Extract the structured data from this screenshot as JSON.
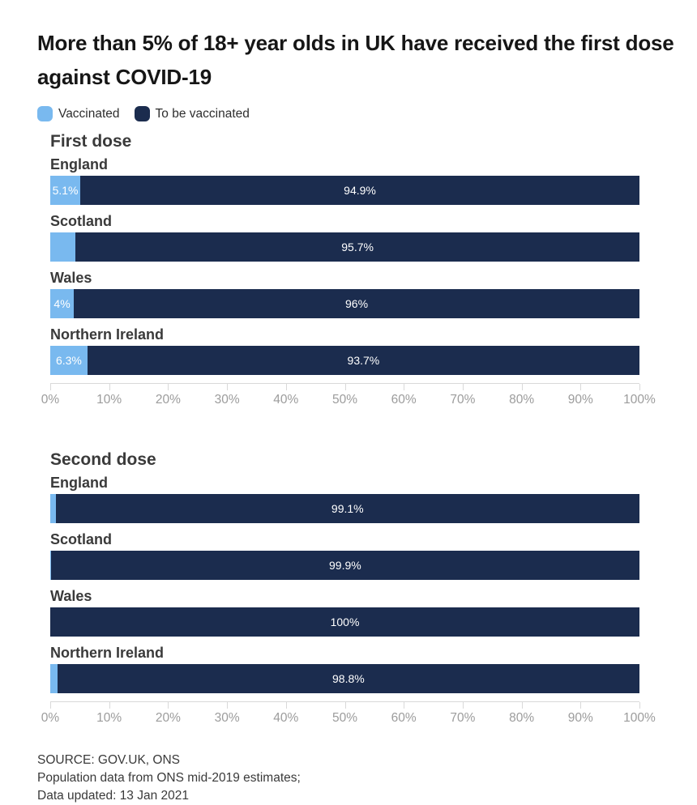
{
  "title": "More than 5% of 18+ year olds in UK have received the first dose against COVID-19",
  "colors": {
    "vaccinated": "#79b9ef",
    "to_be_vaccinated": "#1b2c4e",
    "axis": "#d9d9d9",
    "axis_label": "#9c9c9c"
  },
  "legend": {
    "items": [
      {
        "label": "Vaccinated",
        "color": "#79b9ef"
      },
      {
        "label": "To be vaccinated",
        "color": "#1b2c4e"
      }
    ]
  },
  "sections": [
    {
      "heading": "First dose",
      "rows": [
        {
          "country": "England",
          "vaccinated_pct": 5.1,
          "vaccinated_label": "5.1%",
          "remaining_pct": 94.9,
          "remaining_label": "94.9%"
        },
        {
          "country": "Scotland",
          "vaccinated_pct": 4.3,
          "vaccinated_label": "",
          "remaining_pct": 95.7,
          "remaining_label": "95.7%"
        },
        {
          "country": "Wales",
          "vaccinated_pct": 4,
          "vaccinated_label": "4%",
          "remaining_pct": 96,
          "remaining_label": "96%"
        },
        {
          "country": "Northern Ireland",
          "vaccinated_pct": 6.3,
          "vaccinated_label": "6.3%",
          "remaining_pct": 93.7,
          "remaining_label": "93.7%"
        }
      ],
      "ticks": [
        "0%",
        "10%",
        "20%",
        "30%",
        "40%",
        "50%",
        "60%",
        "70%",
        "80%",
        "90%",
        "100%"
      ]
    },
    {
      "heading": "Second dose",
      "rows": [
        {
          "country": "England",
          "vaccinated_pct": 0.9,
          "vaccinated_label": "",
          "remaining_pct": 99.1,
          "remaining_label": "99.1%"
        },
        {
          "country": "Scotland",
          "vaccinated_pct": 0.1,
          "vaccinated_label": "",
          "remaining_pct": 99.9,
          "remaining_label": "99.9%"
        },
        {
          "country": "Wales",
          "vaccinated_pct": 0,
          "vaccinated_label": "",
          "remaining_pct": 100,
          "remaining_label": "100%"
        },
        {
          "country": "Northern Ireland",
          "vaccinated_pct": 1.2,
          "vaccinated_label": "",
          "remaining_pct": 98.8,
          "remaining_label": "98.8%"
        }
      ],
      "ticks": [
        "0%",
        "10%",
        "20%",
        "30%",
        "40%",
        "50%",
        "60%",
        "70%",
        "80%",
        "90%",
        "100%"
      ]
    }
  ],
  "source": {
    "lines": [
      "SOURCE: GOV.UK, ONS",
      "Population data from ONS mid-2019 estimates;",
      "Data updated: 13 Jan 2021"
    ]
  },
  "chart_data": [
    {
      "type": "bar",
      "orientation": "horizontal_stacked",
      "title": "First dose",
      "categories": [
        "England",
        "Scotland",
        "Wales",
        "Northern Ireland"
      ],
      "series": [
        {
          "name": "Vaccinated",
          "values": [
            5.1,
            4.3,
            4.0,
            6.3
          ],
          "color": "#79b9ef"
        },
        {
          "name": "To be vaccinated",
          "values": [
            94.9,
            95.7,
            96.0,
            93.7
          ],
          "color": "#1b2c4e"
        }
      ],
      "xlim": [
        0,
        100
      ],
      "x_tick_labels": [
        "0%",
        "10%",
        "20%",
        "30%",
        "40%",
        "50%",
        "60%",
        "70%",
        "80%",
        "90%",
        "100%"
      ],
      "value_unit": "%",
      "grid": false,
      "legend_position": "top"
    },
    {
      "type": "bar",
      "orientation": "horizontal_stacked",
      "title": "Second dose",
      "categories": [
        "England",
        "Scotland",
        "Wales",
        "Northern Ireland"
      ],
      "series": [
        {
          "name": "Vaccinated",
          "values": [
            0.9,
            0.1,
            0.0,
            1.2
          ],
          "color": "#79b9ef"
        },
        {
          "name": "To be vaccinated",
          "values": [
            99.1,
            99.9,
            100.0,
            98.8
          ],
          "color": "#1b2c4e"
        }
      ],
      "xlim": [
        0,
        100
      ],
      "x_tick_labels": [
        "0%",
        "10%",
        "20%",
        "30%",
        "40%",
        "50%",
        "60%",
        "70%",
        "80%",
        "90%",
        "100%"
      ],
      "value_unit": "%",
      "grid": false,
      "legend_position": "top"
    }
  ]
}
